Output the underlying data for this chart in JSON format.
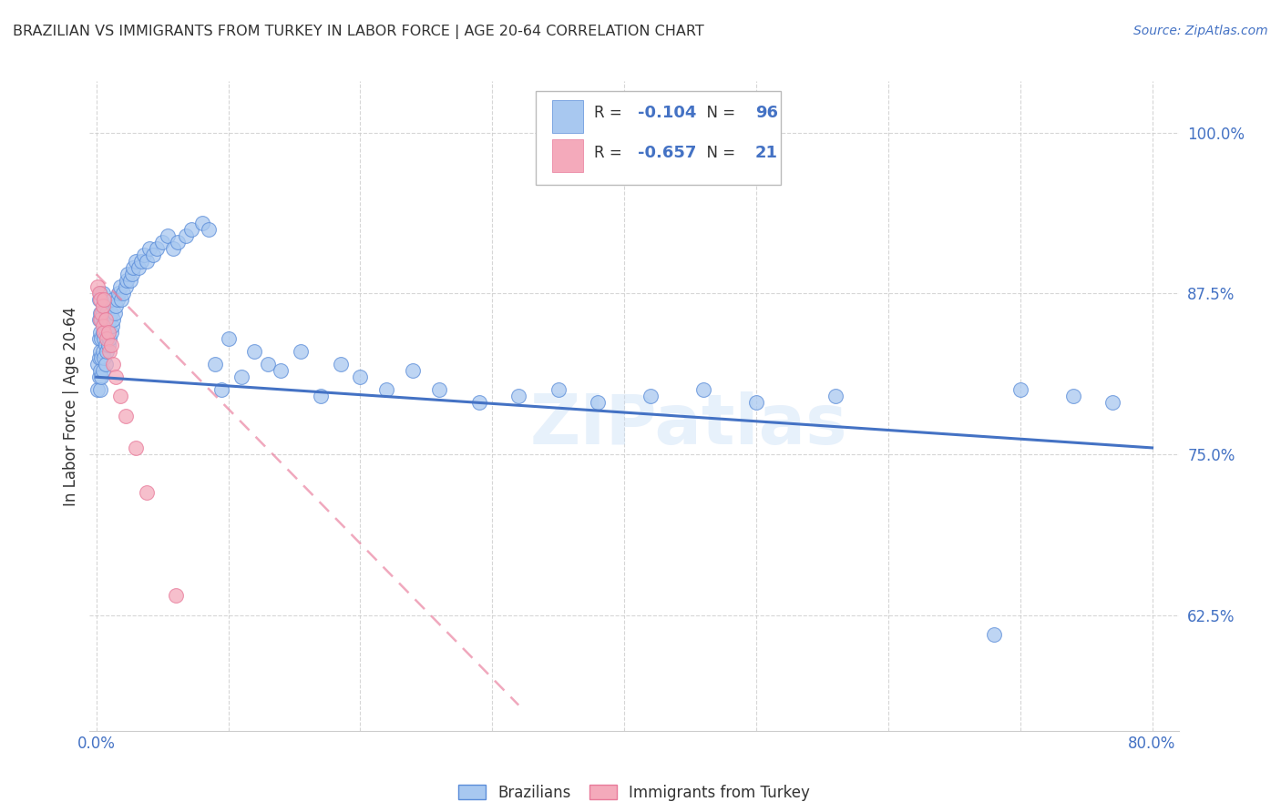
{
  "title": "BRAZILIAN VS IMMIGRANTS FROM TURKEY IN LABOR FORCE | AGE 20-64 CORRELATION CHART",
  "source": "Source: ZipAtlas.com",
  "ylabel": "In Labor Force | Age 20-64",
  "xlim": [
    -0.005,
    0.82
  ],
  "ylim": [
    0.535,
    1.04
  ],
  "yticks": [
    0.625,
    0.75,
    0.875,
    1.0
  ],
  "ytick_labels": [
    "62.5%",
    "75.0%",
    "87.5%",
    "100.0%"
  ],
  "xticks": [
    0.0,
    0.1,
    0.2,
    0.3,
    0.4,
    0.5,
    0.6,
    0.7,
    0.8
  ],
  "xtick_labels": [
    "0.0%",
    "",
    "",
    "",
    "",
    "",
    "",
    "",
    "80.0%"
  ],
  "blue_color": "#A8C8F0",
  "pink_color": "#F4AABB",
  "blue_edge_color": "#5B8DD9",
  "pink_edge_color": "#E87A9A",
  "blue_line_color": "#4472C4",
  "pink_line_color": "#E87A9A",
  "axis_color": "#4472C4",
  "text_color": "#333333",
  "grid_color": "#CCCCCC",
  "watermark": "ZIPatlas",
  "legend_R1": "R = ",
  "legend_V1": "-0.104",
  "legend_N1_label": "N = ",
  "legend_N1": "96",
  "legend_R2": "R = ",
  "legend_V2": "-0.657",
  "legend_N2_label": "N = ",
  "legend_N2": "21",
  "blue_scatter_x": [
    0.001,
    0.001,
    0.002,
    0.002,
    0.002,
    0.002,
    0.002,
    0.003,
    0.003,
    0.003,
    0.003,
    0.003,
    0.003,
    0.004,
    0.004,
    0.004,
    0.004,
    0.005,
    0.005,
    0.005,
    0.005,
    0.005,
    0.006,
    0.006,
    0.006,
    0.007,
    0.007,
    0.007,
    0.007,
    0.008,
    0.008,
    0.008,
    0.009,
    0.009,
    0.01,
    0.01,
    0.011,
    0.011,
    0.012,
    0.013,
    0.013,
    0.014,
    0.015,
    0.016,
    0.017,
    0.018,
    0.019,
    0.02,
    0.022,
    0.023,
    0.024,
    0.026,
    0.027,
    0.028,
    0.03,
    0.032,
    0.034,
    0.036,
    0.038,
    0.04,
    0.043,
    0.046,
    0.05,
    0.054,
    0.058,
    0.062,
    0.068,
    0.072,
    0.08,
    0.085,
    0.09,
    0.095,
    0.1,
    0.11,
    0.12,
    0.13,
    0.14,
    0.155,
    0.17,
    0.185,
    0.2,
    0.22,
    0.24,
    0.26,
    0.29,
    0.32,
    0.35,
    0.38,
    0.42,
    0.46,
    0.5,
    0.56,
    0.68,
    0.7,
    0.74,
    0.77
  ],
  "blue_scatter_y": [
    0.8,
    0.82,
    0.81,
    0.825,
    0.84,
    0.855,
    0.87,
    0.8,
    0.815,
    0.83,
    0.845,
    0.86,
    0.875,
    0.81,
    0.825,
    0.84,
    0.855,
    0.815,
    0.83,
    0.845,
    0.86,
    0.875,
    0.825,
    0.84,
    0.855,
    0.82,
    0.835,
    0.85,
    0.865,
    0.83,
    0.845,
    0.86,
    0.835,
    0.85,
    0.84,
    0.855,
    0.845,
    0.86,
    0.85,
    0.855,
    0.87,
    0.86,
    0.865,
    0.87,
    0.875,
    0.88,
    0.87,
    0.875,
    0.88,
    0.885,
    0.89,
    0.885,
    0.89,
    0.895,
    0.9,
    0.895,
    0.9,
    0.905,
    0.9,
    0.91,
    0.905,
    0.91,
    0.915,
    0.92,
    0.91,
    0.915,
    0.92,
    0.925,
    0.93,
    0.925,
    0.82,
    0.8,
    0.84,
    0.81,
    0.83,
    0.82,
    0.815,
    0.83,
    0.795,
    0.82,
    0.81,
    0.8,
    0.815,
    0.8,
    0.79,
    0.795,
    0.8,
    0.79,
    0.795,
    0.8,
    0.79,
    0.795,
    0.61,
    0.8,
    0.795,
    0.79
  ],
  "pink_scatter_x": [
    0.001,
    0.002,
    0.003,
    0.003,
    0.004,
    0.005,
    0.005,
    0.006,
    0.006,
    0.007,
    0.008,
    0.009,
    0.01,
    0.011,
    0.013,
    0.015,
    0.018,
    0.022,
    0.03,
    0.038,
    0.06
  ],
  "pink_scatter_y": [
    0.88,
    0.875,
    0.87,
    0.855,
    0.86,
    0.865,
    0.85,
    0.87,
    0.845,
    0.855,
    0.84,
    0.845,
    0.83,
    0.835,
    0.82,
    0.81,
    0.795,
    0.78,
    0.755,
    0.72,
    0.64
  ],
  "blue_trend_x": [
    0.0,
    0.8
  ],
  "blue_trend_y": [
    0.81,
    0.755
  ],
  "pink_trend_x": [
    0.0,
    0.32
  ],
  "pink_trend_y": [
    0.89,
    0.555
  ]
}
